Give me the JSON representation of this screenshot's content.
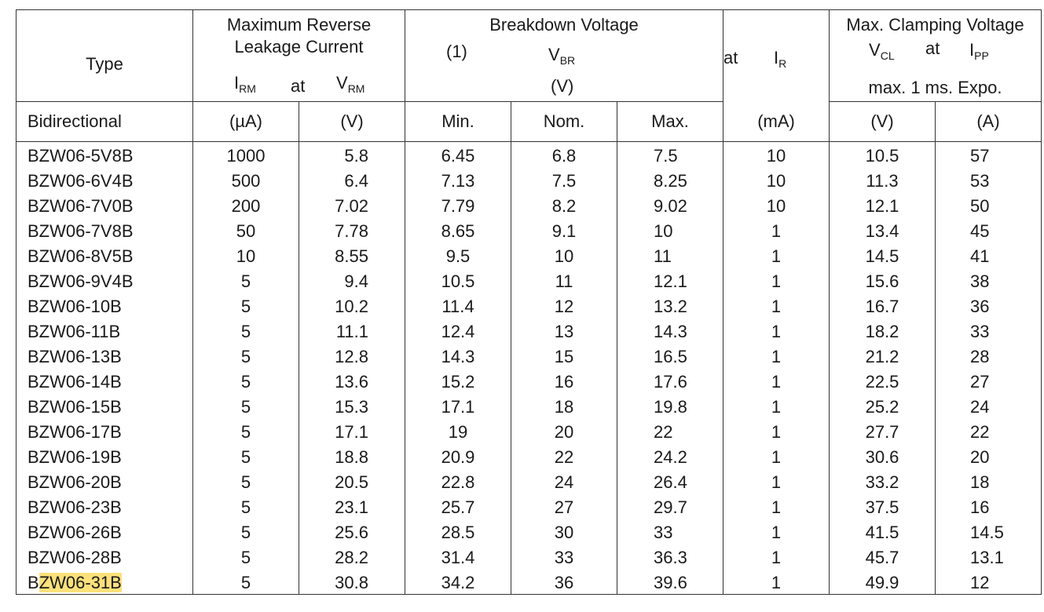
{
  "header": {
    "type": "Type",
    "leakage_line1": "Maximum Reverse",
    "leakage_line2": "Leakage Current",
    "irm_sym": "I",
    "irm_sub": "RM",
    "at1": "at",
    "vrm_sym": "V",
    "vrm_sub": "RM",
    "breakdown": "Breakdown Voltage",
    "note": "(1)",
    "vbr_sym": "V",
    "vbr_sub": "BR",
    "at2": "at",
    "ir_sym": "I",
    "ir_sub": "R",
    "vbr_unit": "(V)",
    "clamping": "Max. Clamping Voltage",
    "vcl_sym": "V",
    "vcl_sub": "CL",
    "at3": "at",
    "ipp_sym": "I",
    "ipp_sub": "PP",
    "clamp_note": "max. 1 ms. Expo."
  },
  "units": {
    "type": "Bidirectional",
    "irm": "(µA)",
    "vrm": "(V)",
    "min": "Min.",
    "nom": "Nom.",
    "max": "Max.",
    "ir": "(mA)",
    "vcl": "(V)",
    "ipp": "(A)"
  },
  "rows": [
    {
      "type": "BZW06-5V8B",
      "irm": "1000",
      "vrm": "5.8",
      "min": "6.45",
      "nom": "6.8",
      "max": "7.5",
      "ir": "10",
      "vcl": "10.5",
      "ipp": "57"
    },
    {
      "type": "BZW06-6V4B",
      "irm": "500",
      "vrm": "6.4",
      "min": "7.13",
      "nom": "7.5",
      "max": "8.25",
      "ir": "10",
      "vcl": "11.3",
      "ipp": "53"
    },
    {
      "type": "BZW06-7V0B",
      "irm": "200",
      "vrm": "7.02",
      "min": "7.79",
      "nom": "8.2",
      "max": "9.02",
      "ir": "10",
      "vcl": "12.1",
      "ipp": "50"
    },
    {
      "type": "BZW06-7V8B",
      "irm": "50",
      "vrm": "7.78",
      "min": "8.65",
      "nom": "9.1",
      "max": "10",
      "ir": "1",
      "vcl": "13.4",
      "ipp": "45"
    },
    {
      "type": "BZW06-8V5B",
      "irm": "10",
      "vrm": "8.55",
      "min": "9.5",
      "nom": "10",
      "max": "11",
      "ir": "1",
      "vcl": "14.5",
      "ipp": "41"
    },
    {
      "type": "BZW06-9V4B",
      "irm": "5",
      "vrm": "9.4",
      "min": "10.5",
      "nom": "11",
      "max": "12.1",
      "ir": "1",
      "vcl": "15.6",
      "ipp": "38"
    },
    {
      "type": "BZW06-10B",
      "irm": "5",
      "vrm": "10.2",
      "min": "11.4",
      "nom": "12",
      "max": "13.2",
      "ir": "1",
      "vcl": "16.7",
      "ipp": "36"
    },
    {
      "type": "BZW06-11B",
      "irm": "5",
      "vrm": "11.1",
      "min": "12.4",
      "nom": "13",
      "max": "14.3",
      "ir": "1",
      "vcl": "18.2",
      "ipp": "33"
    },
    {
      "type": "BZW06-13B",
      "irm": "5",
      "vrm": "12.8",
      "min": "14.3",
      "nom": "15",
      "max": "16.5",
      "ir": "1",
      "vcl": "21.2",
      "ipp": "28"
    },
    {
      "type": "BZW06-14B",
      "irm": "5",
      "vrm": "13.6",
      "min": "15.2",
      "nom": "16",
      "max": "17.6",
      "ir": "1",
      "vcl": "22.5",
      "ipp": "27"
    },
    {
      "type": "BZW06-15B",
      "irm": "5",
      "vrm": "15.3",
      "min": "17.1",
      "nom": "18",
      "max": "19.8",
      "ir": "1",
      "vcl": "25.2",
      "ipp": "24"
    },
    {
      "type": "BZW06-17B",
      "irm": "5",
      "vrm": "17.1",
      "min": "19",
      "nom": "20",
      "max": "22",
      "ir": "1",
      "vcl": "27.7",
      "ipp": "22"
    },
    {
      "type": "BZW06-19B",
      "irm": "5",
      "vrm": "18.8",
      "min": "20.9",
      "nom": "22",
      "max": "24.2",
      "ir": "1",
      "vcl": "30.6",
      "ipp": "20"
    },
    {
      "type": "BZW06-20B",
      "irm": "5",
      "vrm": "20.5",
      "min": "22.8",
      "nom": "24",
      "max": "26.4",
      "ir": "1",
      "vcl": "33.2",
      "ipp": "18"
    },
    {
      "type": "BZW06-23B",
      "irm": "5",
      "vrm": "23.1",
      "min": "25.7",
      "nom": "27",
      "max": "29.7",
      "ir": "1",
      "vcl": "37.5",
      "ipp": "16"
    },
    {
      "type": "BZW06-26B",
      "irm": "5",
      "vrm": "25.6",
      "min": "28.5",
      "nom": "30",
      "max": "33",
      "ir": "1",
      "vcl": "41.5",
      "ipp": "14.5"
    },
    {
      "type": "BZW06-28B",
      "irm": "5",
      "vrm": "28.2",
      "min": "31.4",
      "nom": "33",
      "max": "36.3",
      "ir": "1",
      "vcl": "45.7",
      "ipp": "13.1"
    },
    {
      "type": "BZW06-31B",
      "irm": "5",
      "vrm": "30.8",
      "min": "34.2",
      "nom": "36",
      "max": "39.6",
      "ir": "1",
      "vcl": "49.9",
      "ipp": "12"
    }
  ],
  "highlight": {
    "row_index": 17,
    "color": "#fbe17a"
  }
}
